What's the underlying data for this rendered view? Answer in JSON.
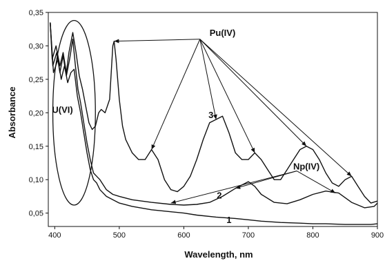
{
  "chart_data": {
    "type": "line",
    "xlabel": "Wavelength, nm",
    "ylabel": "Absorbance",
    "xlim": [
      390,
      900
    ],
    "ylim": [
      0.03,
      0.35
    ],
    "xticks": [
      {
        "v": 400,
        "label": "400"
      },
      {
        "v": 500,
        "label": "500"
      },
      {
        "v": 600,
        "label": "600"
      },
      {
        "v": 700,
        "label": "700"
      },
      {
        "v": 800,
        "label": "800"
      },
      {
        "v": 900,
        "label": "900"
      }
    ],
    "yticks": [
      {
        "v": 0.05,
        "label": "0,05"
      },
      {
        "v": 0.1,
        "label": "0,10"
      },
      {
        "v": 0.15,
        "label": "0,15"
      },
      {
        "v": 0.2,
        "label": "0,20"
      },
      {
        "v": 0.25,
        "label": "0,25"
      },
      {
        "v": 0.3,
        "label": "0,30"
      },
      {
        "v": 0.35,
        "label": "0,35"
      }
    ],
    "grid": false,
    "series": [
      {
        "label": "1",
        "label_at": [
          670,
          0.035
        ],
        "points": [
          [
            393,
            0.335
          ],
          [
            398,
            0.26
          ],
          [
            405,
            0.28
          ],
          [
            410,
            0.25
          ],
          [
            415,
            0.27
          ],
          [
            420,
            0.245
          ],
          [
            425,
            0.26
          ],
          [
            430,
            0.265
          ],
          [
            435,
            0.225
          ],
          [
            440,
            0.2
          ],
          [
            445,
            0.17
          ],
          [
            450,
            0.14
          ],
          [
            455,
            0.115
          ],
          [
            460,
            0.1
          ],
          [
            465,
            0.095
          ],
          [
            470,
            0.085
          ],
          [
            480,
            0.075
          ],
          [
            490,
            0.07
          ],
          [
            500,
            0.065
          ],
          [
            520,
            0.06
          ],
          [
            550,
            0.055
          ],
          [
            580,
            0.052
          ],
          [
            600,
            0.05
          ],
          [
            620,
            0.047
          ],
          [
            650,
            0.044
          ],
          [
            680,
            0.042
          ],
          [
            700,
            0.04
          ],
          [
            720,
            0.038
          ],
          [
            750,
            0.036
          ],
          [
            780,
            0.035
          ],
          [
            800,
            0.034
          ],
          [
            820,
            0.034
          ],
          [
            850,
            0.033
          ],
          [
            870,
            0.033
          ],
          [
            890,
            0.033
          ],
          [
            900,
            0.034
          ]
        ]
      },
      {
        "label": "2",
        "label_at": [
          655,
          0.072
        ],
        "points": [
          [
            393,
            0.335
          ],
          [
            397,
            0.27
          ],
          [
            403,
            0.29
          ],
          [
            408,
            0.26
          ],
          [
            413,
            0.285
          ],
          [
            418,
            0.255
          ],
          [
            423,
            0.28
          ],
          [
            428,
            0.31
          ],
          [
            432,
            0.27
          ],
          [
            436,
            0.235
          ],
          [
            440,
            0.215
          ],
          [
            445,
            0.185
          ],
          [
            450,
            0.155
          ],
          [
            455,
            0.13
          ],
          [
            460,
            0.11
          ],
          [
            465,
            0.105
          ],
          [
            470,
            0.1
          ],
          [
            480,
            0.085
          ],
          [
            490,
            0.078
          ],
          [
            500,
            0.075
          ],
          [
            520,
            0.07
          ],
          [
            550,
            0.066
          ],
          [
            580,
            0.063
          ],
          [
            600,
            0.062
          ],
          [
            620,
            0.063
          ],
          [
            640,
            0.066
          ],
          [
            660,
            0.075
          ],
          [
            680,
            0.087
          ],
          [
            700,
            0.097
          ],
          [
            710,
            0.09
          ],
          [
            720,
            0.078
          ],
          [
            740,
            0.066
          ],
          [
            760,
            0.064
          ],
          [
            780,
            0.07
          ],
          [
            800,
            0.078
          ],
          [
            820,
            0.083
          ],
          [
            840,
            0.08
          ],
          [
            860,
            0.066
          ],
          [
            880,
            0.058
          ],
          [
            895,
            0.06
          ],
          [
            900,
            0.065
          ]
        ]
      },
      {
        "label": "3",
        "label_at": [
          642,
          0.192
        ],
        "points": [
          [
            393,
            0.335
          ],
          [
            396,
            0.28
          ],
          [
            402,
            0.3
          ],
          [
            408,
            0.27
          ],
          [
            413,
            0.29
          ],
          [
            418,
            0.26
          ],
          [
            422,
            0.29
          ],
          [
            428,
            0.32
          ],
          [
            433,
            0.29
          ],
          [
            438,
            0.255
          ],
          [
            443,
            0.235
          ],
          [
            448,
            0.21
          ],
          [
            453,
            0.185
          ],
          [
            458,
            0.175
          ],
          [
            463,
            0.18
          ],
          [
            468,
            0.2
          ],
          [
            472,
            0.205
          ],
          [
            478,
            0.2
          ],
          [
            485,
            0.22
          ],
          [
            490,
            0.3
          ],
          [
            492,
            0.307
          ],
          [
            495,
            0.28
          ],
          [
            500,
            0.22
          ],
          [
            505,
            0.18
          ],
          [
            510,
            0.16
          ],
          [
            520,
            0.14
          ],
          [
            530,
            0.13
          ],
          [
            540,
            0.13
          ],
          [
            550,
            0.145
          ],
          [
            560,
            0.13
          ],
          [
            570,
            0.1
          ],
          [
            580,
            0.085
          ],
          [
            590,
            0.082
          ],
          [
            600,
            0.09
          ],
          [
            610,
            0.105
          ],
          [
            620,
            0.13
          ],
          [
            630,
            0.16
          ],
          [
            640,
            0.185
          ],
          [
            650,
            0.19
          ],
          [
            660,
            0.195
          ],
          [
            670,
            0.17
          ],
          [
            680,
            0.14
          ],
          [
            690,
            0.13
          ],
          [
            700,
            0.13
          ],
          [
            710,
            0.14
          ],
          [
            720,
            0.13
          ],
          [
            730,
            0.115
          ],
          [
            740,
            0.1
          ],
          [
            750,
            0.1
          ],
          [
            760,
            0.115
          ],
          [
            770,
            0.13
          ],
          [
            780,
            0.145
          ],
          [
            790,
            0.15
          ],
          [
            800,
            0.145
          ],
          [
            810,
            0.13
          ],
          [
            820,
            0.11
          ],
          [
            830,
            0.095
          ],
          [
            840,
            0.09
          ],
          [
            850,
            0.1
          ],
          [
            860,
            0.105
          ],
          [
            870,
            0.09
          ],
          [
            880,
            0.075
          ],
          [
            890,
            0.065
          ],
          [
            900,
            0.068
          ]
        ]
      }
    ],
    "annotations": [
      {
        "text": "Pu(IV)",
        "at": [
          660,
          0.315
        ],
        "arrows": [
          [
            492,
            0.307
          ],
          [
            550,
            0.145
          ],
          [
            650,
            0.19
          ],
          [
            710,
            0.14
          ],
          [
            790,
            0.15
          ],
          [
            860,
            0.105
          ]
        ],
        "from": [
          625,
          0.31
        ]
      },
      {
        "text": "Np(IV)",
        "at": [
          790,
          0.115
        ],
        "arrows": [
          [
            580,
            0.065
          ],
          [
            680,
            0.087
          ],
          [
            835,
            0.08
          ]
        ],
        "from": [
          775,
          0.113
        ]
      },
      {
        "text": "U(VI)",
        "at": [
          412,
          0.2
        ],
        "ellipse": {
          "cx": 430,
          "cy": 0.2,
          "rx": 33,
          "ry": 0.138
        }
      }
    ]
  }
}
